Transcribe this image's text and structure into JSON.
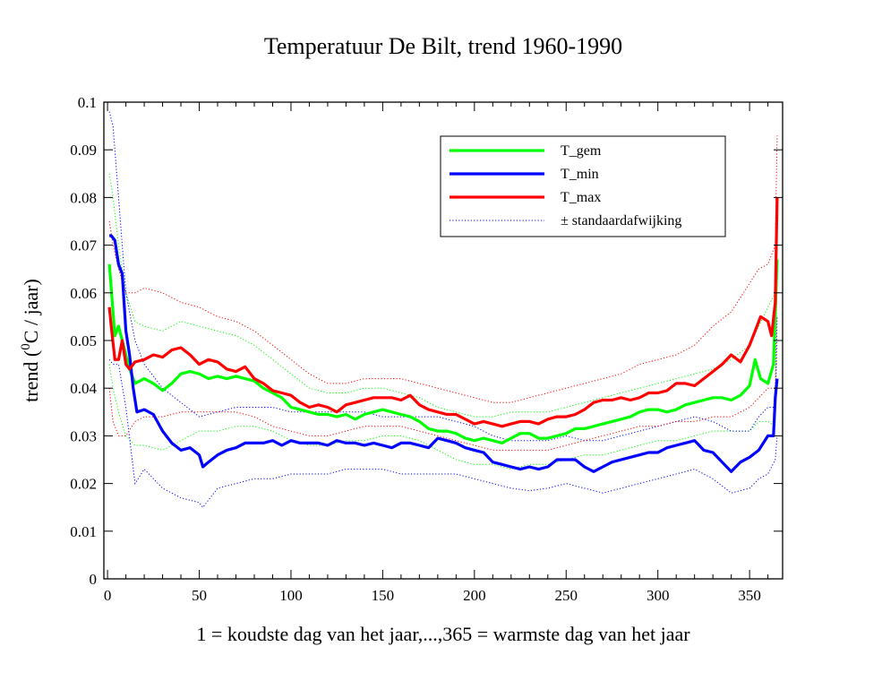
{
  "chart_data": {
    "type": "line",
    "title": "Temperatuur De Bilt, trend 1960-1990",
    "xlabel": "1 = koudste dag van het jaar,...,365 = warmste dag van het jaar",
    "ylabel_prefix": "trend (",
    "ylabel_sup": "0",
    "ylabel_suffix": "C / jaar)",
    "xlim": [
      -2,
      368
    ],
    "ylim": [
      0,
      0.1
    ],
    "xticks": [
      0,
      50,
      100,
      150,
      200,
      250,
      300,
      350
    ],
    "xtick_labels": [
      "0",
      "50",
      "100",
      "150",
      "200",
      "250",
      "300",
      "350"
    ],
    "yticks": [
      0,
      0.01,
      0.02,
      0.03,
      0.04,
      0.05,
      0.06,
      0.07,
      0.08,
      0.09,
      0.1
    ],
    "ytick_labels": [
      "0",
      "0.01",
      "0.02",
      "0.03",
      "0.04",
      "0.05",
      "0.06",
      "0.07",
      "0.08",
      "0.09",
      "0.1"
    ],
    "grid": false,
    "legend_position": "top-right",
    "legend": [
      {
        "label": "T_gem",
        "color": "#00ff00",
        "style": "solid"
      },
      {
        "label": "T_min",
        "color": "#0000ff",
        "style": "solid"
      },
      {
        "label": "T_max",
        "color": "#ff0000",
        "style": "solid"
      },
      {
        "label": "± standaardafwijking",
        "color": "#0000ff",
        "style": "dotted"
      }
    ],
    "series": [
      {
        "name": "T_gem",
        "color": "#00ff00",
        "style": "solid",
        "x": [
          1,
          2,
          4,
          6,
          8,
          10,
          12,
          15,
          20,
          25,
          30,
          35,
          40,
          45,
          50,
          55,
          60,
          65,
          70,
          75,
          80,
          85,
          90,
          95,
          100,
          105,
          110,
          115,
          120,
          125,
          130,
          135,
          140,
          145,
          150,
          155,
          160,
          165,
          170,
          175,
          180,
          185,
          190,
          195,
          200,
          205,
          210,
          215,
          220,
          225,
          230,
          235,
          240,
          245,
          250,
          255,
          260,
          265,
          270,
          275,
          280,
          285,
          290,
          295,
          300,
          305,
          310,
          315,
          320,
          325,
          330,
          335,
          340,
          345,
          350,
          353,
          356,
          360,
          363,
          365
        ],
        "y": [
          0.066,
          0.061,
          0.051,
          0.053,
          0.05,
          0.047,
          0.044,
          0.041,
          0.042,
          0.041,
          0.0395,
          0.041,
          0.043,
          0.0435,
          0.043,
          0.042,
          0.0425,
          0.042,
          0.0425,
          0.042,
          0.0415,
          0.04,
          0.039,
          0.038,
          0.036,
          0.0355,
          0.035,
          0.0345,
          0.0345,
          0.034,
          0.0345,
          0.0335,
          0.0345,
          0.035,
          0.0355,
          0.035,
          0.0345,
          0.034,
          0.033,
          0.0315,
          0.031,
          0.031,
          0.0305,
          0.0295,
          0.029,
          0.0295,
          0.029,
          0.0285,
          0.0295,
          0.0305,
          0.0305,
          0.0295,
          0.0295,
          0.03,
          0.0305,
          0.0315,
          0.0315,
          0.032,
          0.0325,
          0.033,
          0.0335,
          0.034,
          0.035,
          0.0355,
          0.0355,
          0.035,
          0.0355,
          0.0365,
          0.037,
          0.0375,
          0.038,
          0.038,
          0.0375,
          0.0385,
          0.0405,
          0.046,
          0.042,
          0.041,
          0.045,
          0.067
        ]
      },
      {
        "name": "T_min",
        "color": "#0000ff",
        "style": "solid",
        "x": [
          1,
          2,
          4,
          6,
          8,
          10,
          12,
          14,
          16,
          20,
          25,
          30,
          35,
          40,
          45,
          50,
          52,
          55,
          60,
          65,
          70,
          75,
          80,
          85,
          90,
          95,
          100,
          105,
          110,
          115,
          120,
          125,
          130,
          135,
          140,
          145,
          150,
          155,
          160,
          165,
          170,
          175,
          180,
          185,
          190,
          195,
          200,
          205,
          210,
          215,
          220,
          225,
          230,
          235,
          240,
          245,
          250,
          255,
          260,
          265,
          270,
          275,
          280,
          285,
          290,
          295,
          300,
          305,
          310,
          315,
          320,
          325,
          330,
          335,
          340,
          345,
          350,
          355,
          360,
          363,
          364,
          365
        ],
        "y": [
          0.072,
          0.072,
          0.071,
          0.066,
          0.064,
          0.052,
          0.047,
          0.04,
          0.035,
          0.0355,
          0.0345,
          0.031,
          0.0285,
          0.027,
          0.0275,
          0.026,
          0.0235,
          0.0245,
          0.026,
          0.027,
          0.0275,
          0.0285,
          0.0285,
          0.0285,
          0.029,
          0.028,
          0.029,
          0.0285,
          0.0285,
          0.0285,
          0.028,
          0.029,
          0.0285,
          0.0285,
          0.028,
          0.0285,
          0.028,
          0.0275,
          0.0285,
          0.0285,
          0.028,
          0.0275,
          0.0295,
          0.029,
          0.0285,
          0.0275,
          0.027,
          0.0265,
          0.0245,
          0.024,
          0.0235,
          0.023,
          0.0235,
          0.023,
          0.0235,
          0.025,
          0.025,
          0.025,
          0.0235,
          0.0225,
          0.0235,
          0.0245,
          0.025,
          0.0255,
          0.026,
          0.0265,
          0.0265,
          0.0275,
          0.028,
          0.0285,
          0.029,
          0.027,
          0.0265,
          0.0245,
          0.0225,
          0.0245,
          0.0255,
          0.027,
          0.03,
          0.03,
          0.038,
          0.042
        ]
      },
      {
        "name": "T_max",
        "color": "#ff0000",
        "style": "solid",
        "x": [
          1,
          2,
          4,
          6,
          8,
          10,
          12,
          15,
          20,
          25,
          30,
          35,
          40,
          45,
          50,
          55,
          60,
          65,
          70,
          75,
          80,
          85,
          90,
          95,
          100,
          105,
          110,
          115,
          120,
          125,
          130,
          135,
          140,
          145,
          150,
          155,
          160,
          165,
          170,
          175,
          180,
          185,
          190,
          195,
          200,
          205,
          210,
          215,
          220,
          225,
          230,
          235,
          240,
          245,
          250,
          255,
          260,
          265,
          270,
          275,
          280,
          285,
          290,
          295,
          300,
          305,
          310,
          315,
          320,
          325,
          330,
          335,
          340,
          345,
          350,
          353,
          356,
          360,
          362,
          364,
          365
        ],
        "y": [
          0.057,
          0.053,
          0.046,
          0.046,
          0.05,
          0.045,
          0.044,
          0.0455,
          0.046,
          0.047,
          0.0465,
          0.048,
          0.0485,
          0.047,
          0.045,
          0.046,
          0.0455,
          0.044,
          0.0435,
          0.0445,
          0.042,
          0.041,
          0.0395,
          0.039,
          0.0385,
          0.037,
          0.036,
          0.0365,
          0.036,
          0.035,
          0.0365,
          0.037,
          0.0375,
          0.038,
          0.038,
          0.038,
          0.0375,
          0.0385,
          0.0365,
          0.0355,
          0.035,
          0.0345,
          0.0345,
          0.0335,
          0.0325,
          0.033,
          0.0325,
          0.032,
          0.0325,
          0.033,
          0.033,
          0.0325,
          0.0335,
          0.034,
          0.034,
          0.0345,
          0.0355,
          0.037,
          0.0375,
          0.0375,
          0.038,
          0.0375,
          0.038,
          0.039,
          0.039,
          0.0395,
          0.041,
          0.041,
          0.0405,
          0.042,
          0.0435,
          0.045,
          0.047,
          0.0455,
          0.049,
          0.052,
          0.055,
          0.054,
          0.051,
          0.058,
          0.08
        ]
      }
    ],
    "band_series": [
      {
        "name": "T_gem_sd_upper",
        "color": "#00ff00",
        "style": "dotted",
        "x": [
          1,
          3,
          6,
          10,
          15,
          20,
          30,
          40,
          50,
          60,
          70,
          80,
          90,
          100,
          110,
          120,
          130,
          140,
          150,
          160,
          170,
          180,
          190,
          200,
          210,
          220,
          230,
          240,
          250,
          260,
          270,
          280,
          290,
          300,
          310,
          320,
          330,
          340,
          350,
          355,
          360,
          364,
          365
        ],
        "y": [
          0.085,
          0.08,
          0.07,
          0.06,
          0.054,
          0.053,
          0.052,
          0.054,
          0.053,
          0.052,
          0.051,
          0.049,
          0.046,
          0.043,
          0.04,
          0.039,
          0.039,
          0.04,
          0.04,
          0.039,
          0.038,
          0.036,
          0.035,
          0.034,
          0.034,
          0.035,
          0.035,
          0.035,
          0.036,
          0.037,
          0.038,
          0.039,
          0.04,
          0.041,
          0.042,
          0.043,
          0.044,
          0.046,
          0.049,
          0.053,
          0.057,
          0.06,
          0.08
        ]
      },
      {
        "name": "T_gem_sd_lower",
        "color": "#00ff00",
        "style": "dotted",
        "x": [
          1,
          3,
          6,
          10,
          15,
          20,
          30,
          40,
          50,
          60,
          70,
          80,
          90,
          100,
          110,
          120,
          130,
          140,
          150,
          160,
          170,
          180,
          190,
          200,
          210,
          220,
          230,
          240,
          250,
          260,
          270,
          280,
          290,
          300,
          310,
          320,
          330,
          340,
          350,
          355,
          360,
          364,
          365
        ],
        "y": [
          0.045,
          0.04,
          0.035,
          0.03,
          0.028,
          0.028,
          0.027,
          0.029,
          0.031,
          0.031,
          0.032,
          0.032,
          0.031,
          0.029,
          0.028,
          0.028,
          0.029,
          0.029,
          0.03,
          0.03,
          0.029,
          0.027,
          0.025,
          0.024,
          0.024,
          0.023,
          0.024,
          0.024,
          0.025,
          0.026,
          0.026,
          0.027,
          0.028,
          0.029,
          0.029,
          0.03,
          0.031,
          0.031,
          0.031,
          0.033,
          0.033,
          0.032,
          0.05
        ]
      },
      {
        "name": "T_min_sd_upper",
        "color": "#0000ff",
        "style": "dotted",
        "x": [
          1,
          3,
          6,
          10,
          15,
          20,
          30,
          40,
          50,
          60,
          70,
          80,
          90,
          100,
          110,
          120,
          130,
          140,
          150,
          160,
          170,
          180,
          190,
          200,
          210,
          220,
          230,
          240,
          250,
          260,
          270,
          280,
          290,
          300,
          310,
          320,
          330,
          340,
          350,
          355,
          360,
          364,
          365
        ],
        "y": [
          0.098,
          0.095,
          0.08,
          0.06,
          0.05,
          0.045,
          0.04,
          0.037,
          0.034,
          0.035,
          0.036,
          0.036,
          0.036,
          0.035,
          0.035,
          0.035,
          0.035,
          0.035,
          0.034,
          0.034,
          0.034,
          0.034,
          0.033,
          0.032,
          0.03,
          0.029,
          0.029,
          0.029,
          0.03,
          0.029,
          0.029,
          0.03,
          0.031,
          0.032,
          0.033,
          0.034,
          0.033,
          0.031,
          0.031,
          0.034,
          0.036,
          0.036,
          0.055
        ]
      },
      {
        "name": "T_min_sd_lower",
        "color": "#0000ff",
        "style": "dotted",
        "x": [
          1,
          3,
          6,
          10,
          15,
          20,
          30,
          40,
          50,
          52,
          60,
          70,
          80,
          90,
          100,
          110,
          120,
          130,
          140,
          150,
          160,
          170,
          180,
          190,
          200,
          210,
          220,
          230,
          240,
          250,
          260,
          270,
          280,
          290,
          300,
          310,
          320,
          330,
          340,
          350,
          355,
          360,
          364,
          365
        ],
        "y": [
          0.046,
          0.045,
          0.045,
          0.036,
          0.02,
          0.023,
          0.019,
          0.017,
          0.016,
          0.015,
          0.019,
          0.02,
          0.021,
          0.021,
          0.022,
          0.022,
          0.022,
          0.023,
          0.023,
          0.023,
          0.022,
          0.022,
          0.022,
          0.022,
          0.021,
          0.02,
          0.019,
          0.0185,
          0.019,
          0.02,
          0.019,
          0.018,
          0.019,
          0.02,
          0.021,
          0.022,
          0.023,
          0.021,
          0.018,
          0.019,
          0.021,
          0.022,
          0.025,
          0.03
        ]
      },
      {
        "name": "T_max_sd_upper",
        "color": "#ff0000",
        "style": "dotted",
        "x": [
          1,
          3,
          6,
          10,
          15,
          20,
          30,
          40,
          50,
          60,
          70,
          80,
          90,
          100,
          110,
          120,
          130,
          140,
          150,
          160,
          170,
          180,
          190,
          200,
          210,
          220,
          230,
          240,
          250,
          260,
          270,
          280,
          290,
          300,
          310,
          320,
          330,
          340,
          350,
          355,
          360,
          364,
          365
        ],
        "y": [
          0.075,
          0.07,
          0.065,
          0.06,
          0.06,
          0.061,
          0.06,
          0.058,
          0.057,
          0.055,
          0.054,
          0.052,
          0.049,
          0.046,
          0.043,
          0.041,
          0.041,
          0.042,
          0.042,
          0.042,
          0.041,
          0.04,
          0.039,
          0.038,
          0.037,
          0.037,
          0.038,
          0.039,
          0.04,
          0.041,
          0.042,
          0.043,
          0.045,
          0.046,
          0.047,
          0.049,
          0.053,
          0.056,
          0.062,
          0.065,
          0.066,
          0.07,
          0.093
        ]
      },
      {
        "name": "T_max_sd_lower",
        "color": "#ff0000",
        "style": "dotted",
        "x": [
          1,
          3,
          6,
          10,
          15,
          20,
          30,
          40,
          50,
          60,
          70,
          80,
          90,
          100,
          110,
          120,
          130,
          140,
          150,
          160,
          170,
          180,
          190,
          200,
          210,
          220,
          230,
          240,
          250,
          260,
          270,
          280,
          290,
          300,
          310,
          320,
          330,
          340,
          350,
          355,
          360,
          364,
          365
        ],
        "y": [
          0.04,
          0.033,
          0.03,
          0.03,
          0.033,
          0.034,
          0.034,
          0.035,
          0.035,
          0.035,
          0.035,
          0.034,
          0.032,
          0.031,
          0.03,
          0.03,
          0.031,
          0.032,
          0.032,
          0.032,
          0.031,
          0.03,
          0.029,
          0.028,
          0.027,
          0.027,
          0.027,
          0.027,
          0.028,
          0.029,
          0.03,
          0.031,
          0.032,
          0.032,
          0.033,
          0.033,
          0.034,
          0.034,
          0.036,
          0.038,
          0.04,
          0.04,
          0.065
        ]
      }
    ]
  }
}
